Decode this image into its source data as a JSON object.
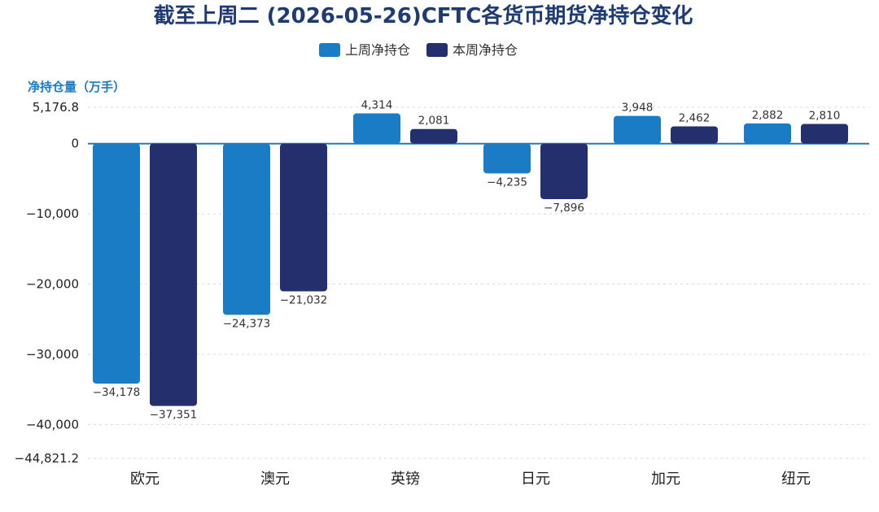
{
  "chart_data": {
    "type": "bar",
    "title": "截至上周二 (2026-05-26)CFTC各货币期货净持仓变化",
    "ylabel": "净持仓量（万手）",
    "categories": [
      "欧元",
      "澳元",
      "英镑",
      "日元",
      "加元",
      "纽元"
    ],
    "series": [
      {
        "name": "上周净持仓",
        "color": "#1a7cc4",
        "values": [
          -34178,
          -24373,
          4314,
          -4235,
          3948,
          2882
        ],
        "labels": [
          "−34,178",
          "−24,373",
          "4,314",
          "−4,235",
          "3,948",
          "2,882"
        ]
      },
      {
        "name": "本周净持仓",
        "color": "#24306e",
        "values": [
          -37351,
          -21032,
          2081,
          -7896,
          2462,
          2810
        ],
        "labels": [
          "−37,351",
          "−21,032",
          "2,081",
          "−7,896",
          "2,462",
          "2,810"
        ]
      }
    ],
    "ylim": [
      -44821.2,
      5176.8
    ],
    "yticks": [
      5176.8,
      0,
      -10000,
      -20000,
      -30000,
      -40000,
      -44821.2
    ],
    "ytick_labels": [
      "5,176.8",
      "0",
      "−10,000",
      "−20,000",
      "−30,000",
      "−40,000",
      "−44,821.2"
    ],
    "grid": true,
    "legend_position": "top-center"
  }
}
